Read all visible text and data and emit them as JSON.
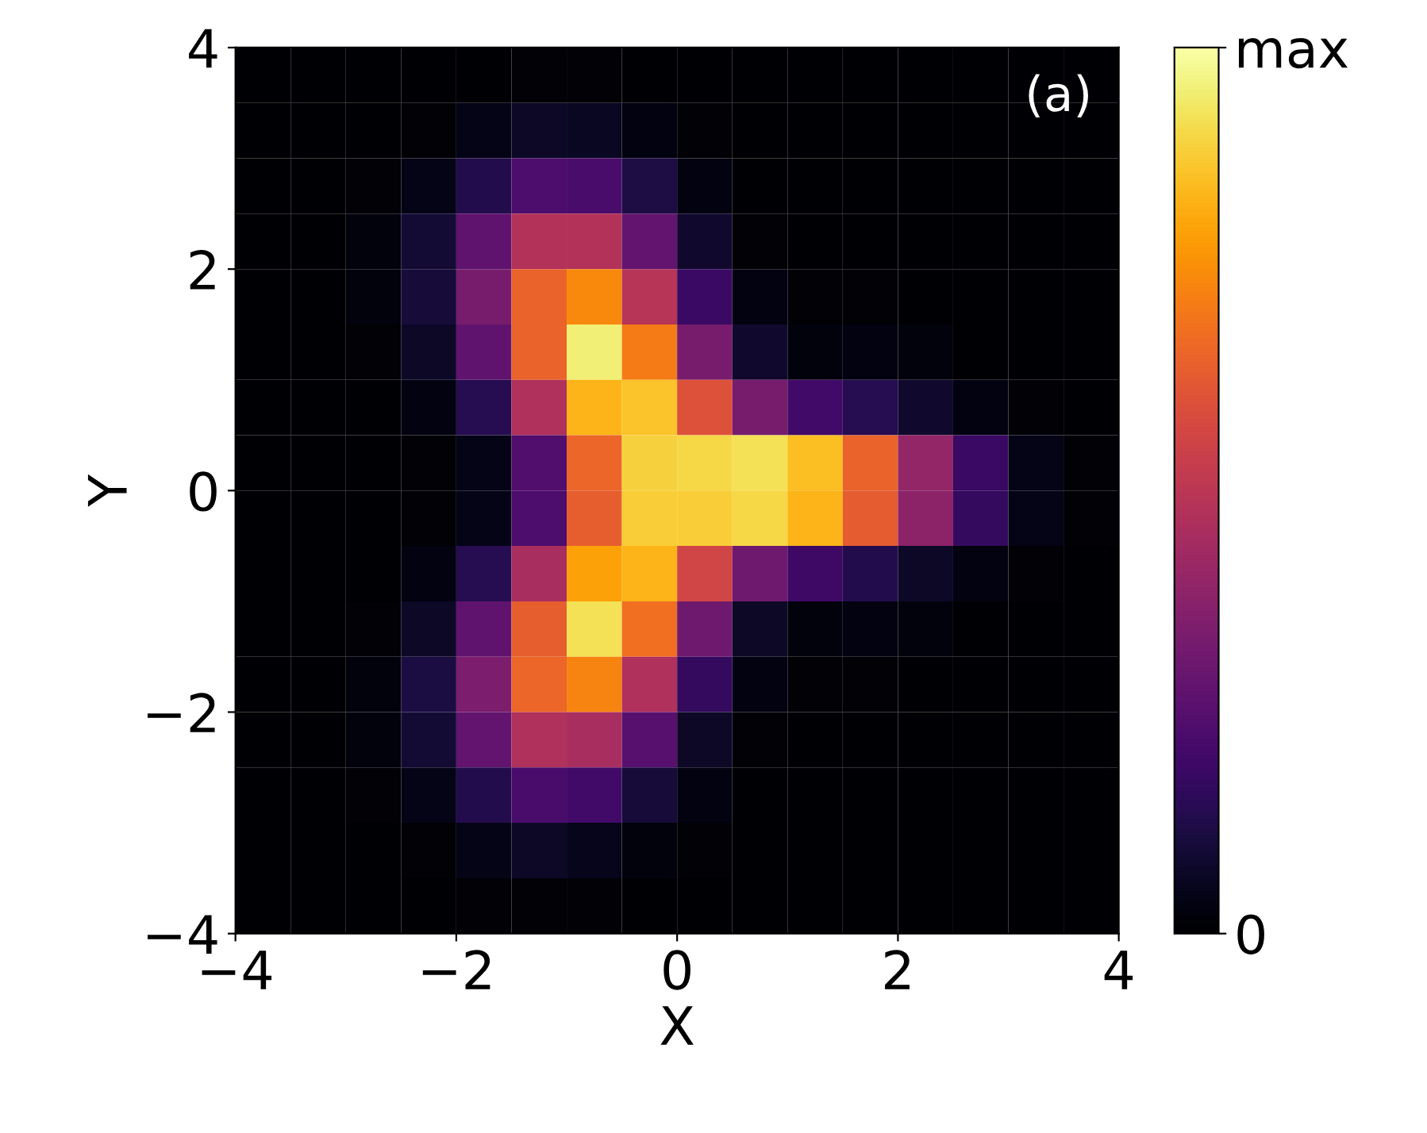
{
  "chart_data": {
    "type": "heatmap",
    "xlabel": "X",
    "ylabel": "Y",
    "annotations": [
      "(a)"
    ],
    "x": [
      -3.75,
      -3.25,
      -2.75,
      -2.25,
      -1.75,
      -1.25,
      -0.75,
      -0.25,
      0.25,
      0.75,
      1.25,
      1.75,
      2.25,
      2.75,
      3.25,
      3.75
    ],
    "y": [
      3.75,
      3.25,
      2.75,
      2.25,
      1.75,
      1.25,
      0.75,
      0.25,
      -0.25,
      -0.75,
      -1.25,
      -1.75,
      -2.25,
      -2.75,
      -3.25,
      -3.75
    ],
    "cells": [
      [
        0,
        0,
        0,
        0,
        0,
        0.01,
        0.01,
        0,
        0,
        0,
        0,
        0,
        0,
        0,
        0,
        0
      ],
      [
        0,
        0,
        0,
        0.01,
        0.04,
        0.07,
        0.06,
        0.03,
        0.01,
        0,
        0,
        0,
        0,
        0,
        0,
        0
      ],
      [
        0,
        0,
        0.01,
        0.04,
        0.13,
        0.23,
        0.22,
        0.12,
        0.03,
        0,
        0,
        0,
        0,
        0,
        0,
        0
      ],
      [
        0,
        0,
        0.02,
        0.09,
        0.27,
        0.48,
        0.48,
        0.28,
        0.08,
        0.01,
        0,
        0,
        0,
        0,
        0,
        0
      ],
      [
        0,
        0,
        0.02,
        0.1,
        0.33,
        0.65,
        0.74,
        0.49,
        0.18,
        0.03,
        0.01,
        0.01,
        0,
        0,
        0,
        0
      ],
      [
        0,
        0,
        0.01,
        0.07,
        0.27,
        0.65,
        0.95,
        0.71,
        0.33,
        0.08,
        0.02,
        0.03,
        0.02,
        0,
        0,
        0
      ],
      [
        0,
        0,
        0,
        0.03,
        0.14,
        0.47,
        0.83,
        0.86,
        0.6,
        0.33,
        0.2,
        0.14,
        0.08,
        0.03,
        0.01,
        0
      ],
      [
        0,
        0,
        0,
        0.01,
        0.04,
        0.24,
        0.66,
        0.89,
        0.9,
        0.92,
        0.85,
        0.65,
        0.4,
        0.18,
        0.04,
        0.01
      ],
      [
        0,
        0,
        0,
        0.01,
        0.04,
        0.23,
        0.64,
        0.88,
        0.88,
        0.9,
        0.83,
        0.63,
        0.38,
        0.17,
        0.04,
        0.01
      ],
      [
        0,
        0,
        0,
        0.03,
        0.14,
        0.45,
        0.79,
        0.83,
        0.56,
        0.31,
        0.19,
        0.13,
        0.07,
        0.03,
        0.01,
        0
      ],
      [
        0,
        0,
        0.01,
        0.07,
        0.27,
        0.64,
        0.92,
        0.68,
        0.31,
        0.07,
        0.02,
        0.03,
        0.02,
        0,
        0,
        0
      ],
      [
        0,
        0,
        0.02,
        0.11,
        0.34,
        0.66,
        0.73,
        0.47,
        0.17,
        0.03,
        0.01,
        0.01,
        0,
        0,
        0,
        0
      ],
      [
        0,
        0,
        0.02,
        0.09,
        0.28,
        0.47,
        0.45,
        0.25,
        0.07,
        0.01,
        0,
        0,
        0,
        0,
        0,
        0
      ],
      [
        0,
        0,
        0.01,
        0.04,
        0.13,
        0.22,
        0.2,
        0.1,
        0.03,
        0,
        0,
        0,
        0,
        0,
        0,
        0
      ],
      [
        0,
        0,
        0,
        0.01,
        0.04,
        0.07,
        0.05,
        0.02,
        0.01,
        0,
        0,
        0,
        0,
        0,
        0,
        0
      ],
      [
        0,
        0,
        0,
        0,
        0.01,
        0.01,
        0.01,
        0,
        0,
        0,
        0,
        0,
        0,
        0,
        0,
        0
      ]
    ],
    "xlim": [
      -4,
      4
    ],
    "ylim": [
      -4,
      4
    ],
    "xticks": [
      {
        "value": -4,
        "label": "−4"
      },
      {
        "value": -2,
        "label": "−2"
      },
      0,
      2,
      4
    ],
    "yticks": [
      {
        "value": -4,
        "label": "−4"
      },
      {
        "value": -2,
        "label": "−2"
      },
      0,
      2,
      4
    ],
    "clim": [
      0,
      1
    ],
    "cticks": [
      0,
      {
        "value": 1,
        "label": "max"
      }
    ]
  }
}
